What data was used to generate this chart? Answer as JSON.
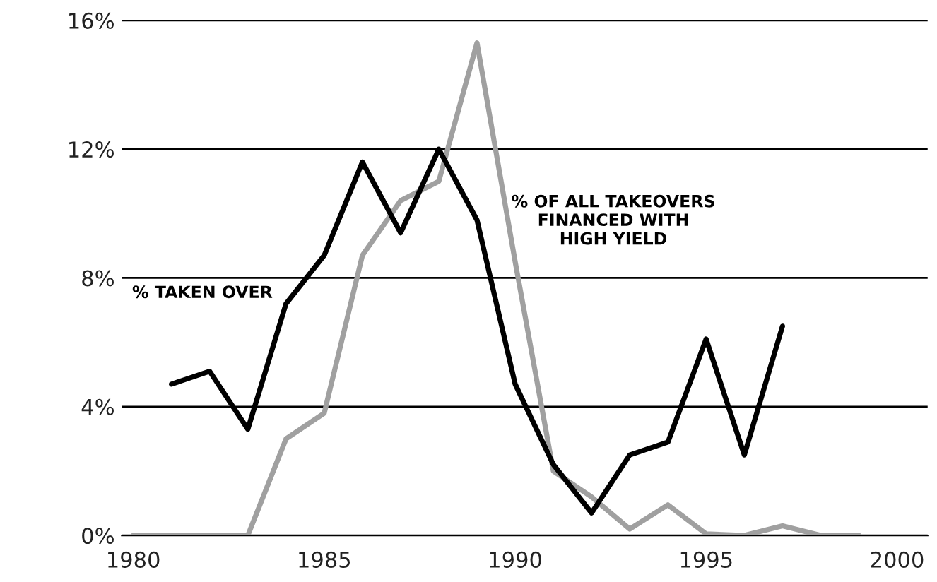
{
  "chart_data": {
    "type": "line",
    "x": [
      1980,
      1981,
      1982,
      1983,
      1984,
      1985,
      1986,
      1987,
      1988,
      1989,
      1990,
      1991,
      1992,
      1993,
      1994,
      1995,
      1996,
      1997,
      1998,
      1999
    ],
    "series": [
      {
        "name": "% TAKEN OVER",
        "color": "#000000",
        "values": [
          null,
          4.7,
          5.1,
          3.3,
          7.2,
          8.7,
          11.6,
          9.4,
          12.0,
          9.8,
          4.7,
          2.2,
          0.7,
          2.5,
          2.9,
          6.1,
          2.5,
          6.5,
          null,
          null
        ]
      },
      {
        "name": "% OF ALL TAKEOVERS\nFINANCED WITH\nHIGH YIELD",
        "color": "#a0a0a0",
        "values": [
          0,
          0,
          0,
          0,
          3.0,
          3.8,
          8.7,
          10.4,
          11.0,
          15.3,
          8.5,
          2.0,
          1.2,
          0.2,
          0.95,
          0.05,
          0,
          0.3,
          0,
          0
        ]
      }
    ],
    "xlim": [
      1979.7,
      2000.8
    ],
    "xticks": [
      1980,
      1985,
      1990,
      1995,
      2000
    ],
    "ylim": [
      0,
      16
    ],
    "yticks": [
      {
        "value": 0,
        "label": "0%"
      },
      {
        "value": 4,
        "label": "4%"
      },
      {
        "value": 8,
        "label": "8%"
      },
      {
        "value": 12,
        "label": "12%"
      },
      {
        "value": 16,
        "label": "16%"
      }
    ],
    "grid": "y",
    "legend": false,
    "marker": "none",
    "line_style": "solid"
  }
}
